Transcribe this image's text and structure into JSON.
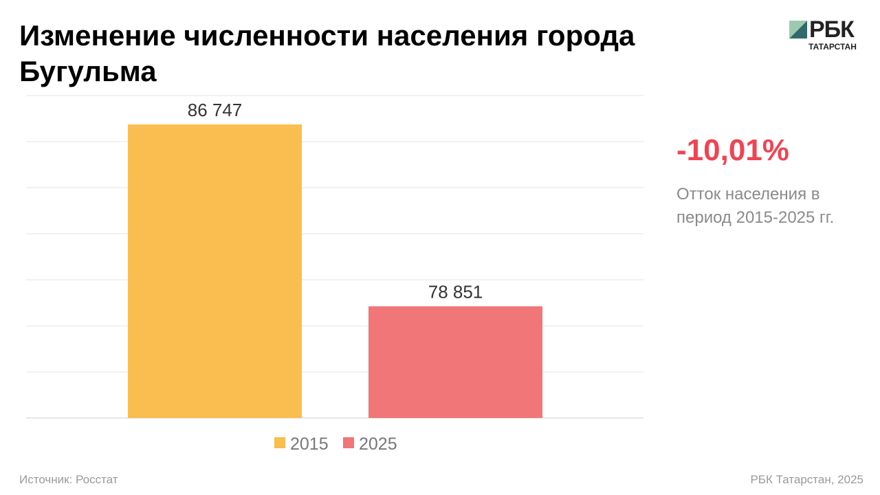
{
  "title": "Изменение численности населения города Бугульма",
  "logo": {
    "main": "РБК",
    "sub": "ТАТАРСТАН"
  },
  "chart_data": {
    "type": "bar",
    "title": "Изменение численности населения города Бугульма",
    "categories": [
      "2015",
      "2025"
    ],
    "values": [
      86747,
      78851
    ],
    "value_labels": [
      "86 747",
      "78 851"
    ],
    "colors": [
      "#f9bd50",
      "#f07677"
    ],
    "ylim": [
      74000,
      88000
    ],
    "grid": true,
    "legend": "bottom-center",
    "xlabel": "",
    "ylabel": ""
  },
  "stat": {
    "value": "-10,01%",
    "description": "Отток населения в период 2015-2025 гг.",
    "color": "#ef4452"
  },
  "footer": {
    "source": "Источник: Росстат",
    "copyright": "РБК Татарстан, 2025"
  }
}
